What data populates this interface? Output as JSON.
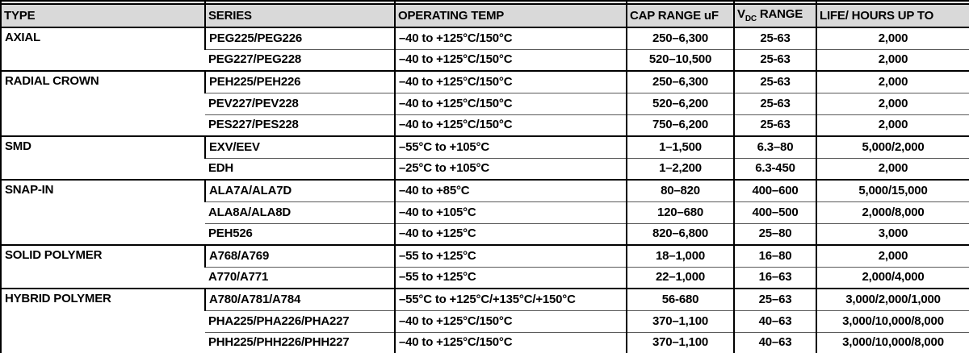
{
  "colors": {
    "header_bg": "#d9d9d9",
    "border": "#000000",
    "row_divider": "#595959",
    "text": "#000000"
  },
  "table": {
    "headers": {
      "type": "TYPE",
      "series": "SERIES",
      "temp": "OPERATING TEMP",
      "cap": "CAP RANGE uF",
      "vdc_base": "V",
      "vdc_sub": "DC",
      "vdc_rest": " RANGE",
      "life": "LIFE/ HOURS UP TO"
    },
    "groups": [
      {
        "type": "AXIAL",
        "rows": [
          {
            "series": "PEG225/PEG226",
            "temp": "–40 to +125°C/150°C",
            "cap": "250–6,300",
            "vdc": "25-63",
            "life": "2,000"
          },
          {
            "series": "PEG227/PEG228",
            "temp": "–40 to +125°C/150°C",
            "cap": "520–10,500",
            "vdc": "25-63",
            "life": "2,000"
          }
        ]
      },
      {
        "type": "RADIAL CROWN",
        "rows": [
          {
            "series": "PEH225/PEH226",
            "temp": "–40 to +125°C/150°C",
            "cap": "250–6,300",
            "vdc": "25-63",
            "life": "2,000"
          },
          {
            "series": "PEV227/PEV228",
            "temp": "–40 to +125°C/150°C",
            "cap": "520–6,200",
            "vdc": "25-63",
            "life": "2,000"
          },
          {
            "series": "PES227/PES228",
            "temp": "–40 to +125°C/150°C",
            "cap": "750–6,200",
            "vdc": "25-63",
            "life": "2,000"
          }
        ]
      },
      {
        "type": "SMD",
        "rows": [
          {
            "series": "EXV/EEV",
            "temp": "–55°C to +105°C",
            "cap": "1–1,500",
            "vdc": "6.3–80",
            "life": "5,000/2,000"
          },
          {
            "series": "EDH",
            "temp": "–25°C to +105°C",
            "cap": "1–2,200",
            "vdc": "6.3-450",
            "life": "2,000"
          }
        ]
      },
      {
        "type": "SNAP-IN",
        "rows": [
          {
            "series": "ALA7A/ALA7D",
            "temp": "–40 to +85°C",
            "cap": "80–820",
            "vdc": "400–600",
            "life": "5,000/15,000"
          },
          {
            "series": "ALA8A/ALA8D",
            "temp": "–40 to +105°C",
            "cap": "120–680",
            "vdc": "400–500",
            "life": "2,000/8,000"
          },
          {
            "series": "PEH526",
            "temp": "–40 to +125°C",
            "cap": "820–6,800",
            "vdc": "25–80",
            "life": "3,000"
          }
        ]
      },
      {
        "type": "SOLID POLYMER",
        "rows": [
          {
            "series": "A768/A769",
            "temp": "–55 to +125°C",
            "cap": "18–1,000",
            "vdc": "16–80",
            "life": "2,000"
          },
          {
            "series": "A770/A771",
            "temp": "–55 to +125°C",
            "cap": "22–1,000",
            "vdc": "16–63",
            "life": "2,000/4,000"
          }
        ]
      },
      {
        "type": "HYBRID POLYMER",
        "rows": [
          {
            "series": "A780/A781/A784",
            "temp": "–55°C to +125°C/+135°C/+150°C",
            "cap": "56-680",
            "vdc": "25–63",
            "life": "3,000/2,000/1,000"
          },
          {
            "series": "PHA225/PHA226/PHA227",
            "temp": "–40 to +125°C/150°C",
            "cap": "370–1,100",
            "vdc": "40–63",
            "life": "3,000/10,000/8,000"
          },
          {
            "series": "PHH225/PHH226/PHH227",
            "temp": "–40 to +125°C/150°C",
            "cap": "370–1,100",
            "vdc": "40–63",
            "life": "3,000/10,000/8,000"
          }
        ]
      }
    ]
  }
}
